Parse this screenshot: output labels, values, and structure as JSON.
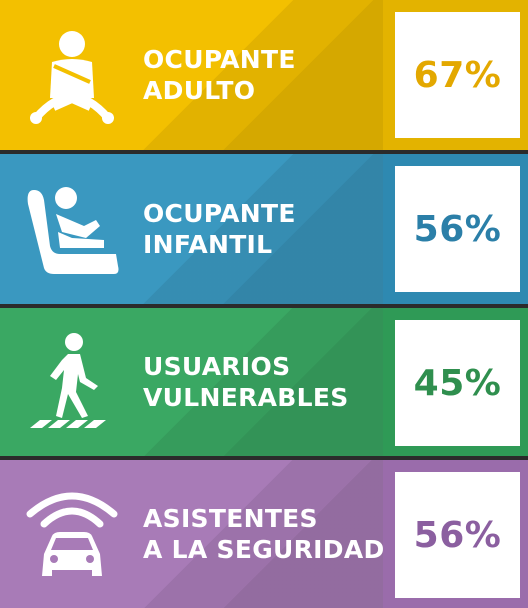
{
  "categories": [
    {
      "line1": "OCUPANTE",
      "line2": "ADULTO",
      "value": "67%",
      "icon": "adult-driver-icon",
      "color": "#f3c000",
      "side_color": "#e3b300",
      "value_color": "#e3a800"
    },
    {
      "line1": "OCUPANTE",
      "line2": "INFANTIL",
      "value": "56%",
      "icon": "child-seat-icon",
      "color": "#3a98c0",
      "side_color": "#2e89b1",
      "value_color": "#2b7fa8"
    },
    {
      "line1": "USUARIOS",
      "line2": "VULNERABLES",
      "value": "45%",
      "icon": "pedestrian-icon",
      "color": "#3aa863",
      "side_color": "#2f9a56",
      "value_color": "#2f8f4e"
    },
    {
      "line1": "ASISTENTES",
      "line2": "A LA SEGURIDAD",
      "value": "56%",
      "icon": "car-sensor-icon",
      "color": "#a87bb7",
      "side_color": "#9a6cab",
      "value_color": "#8b5fa0"
    }
  ]
}
